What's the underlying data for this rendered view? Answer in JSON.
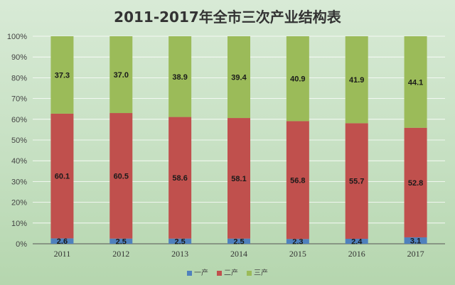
{
  "chart_data": {
    "type": "bar",
    "stacked": true,
    "title": "2011-2017年全市三次产业结构表",
    "categories": [
      "2011",
      "2012",
      "2013",
      "2014",
      "2015",
      "2016",
      "2017"
    ],
    "series": [
      {
        "name": "一产",
        "color": "#4f81bd",
        "values": [
          2.6,
          2.5,
          2.5,
          2.5,
          2.3,
          2.4,
          3.1
        ]
      },
      {
        "name": "二产",
        "color": "#c0504d",
        "values": [
          60.1,
          60.5,
          58.6,
          58.1,
          56.8,
          55.7,
          52.8
        ]
      },
      {
        "name": "三产",
        "color": "#9bbb59",
        "values": [
          37.3,
          37.0,
          38.9,
          39.4,
          40.9,
          41.9,
          44.1
        ]
      }
    ],
    "ylim": [
      0,
      100
    ],
    "yticks": [
      "0%",
      "10%",
      "20%",
      "30%",
      "40%",
      "50%",
      "60%",
      "70%",
      "80%",
      "90%",
      "100%"
    ],
    "grid": true,
    "legend_position": "bottom"
  }
}
